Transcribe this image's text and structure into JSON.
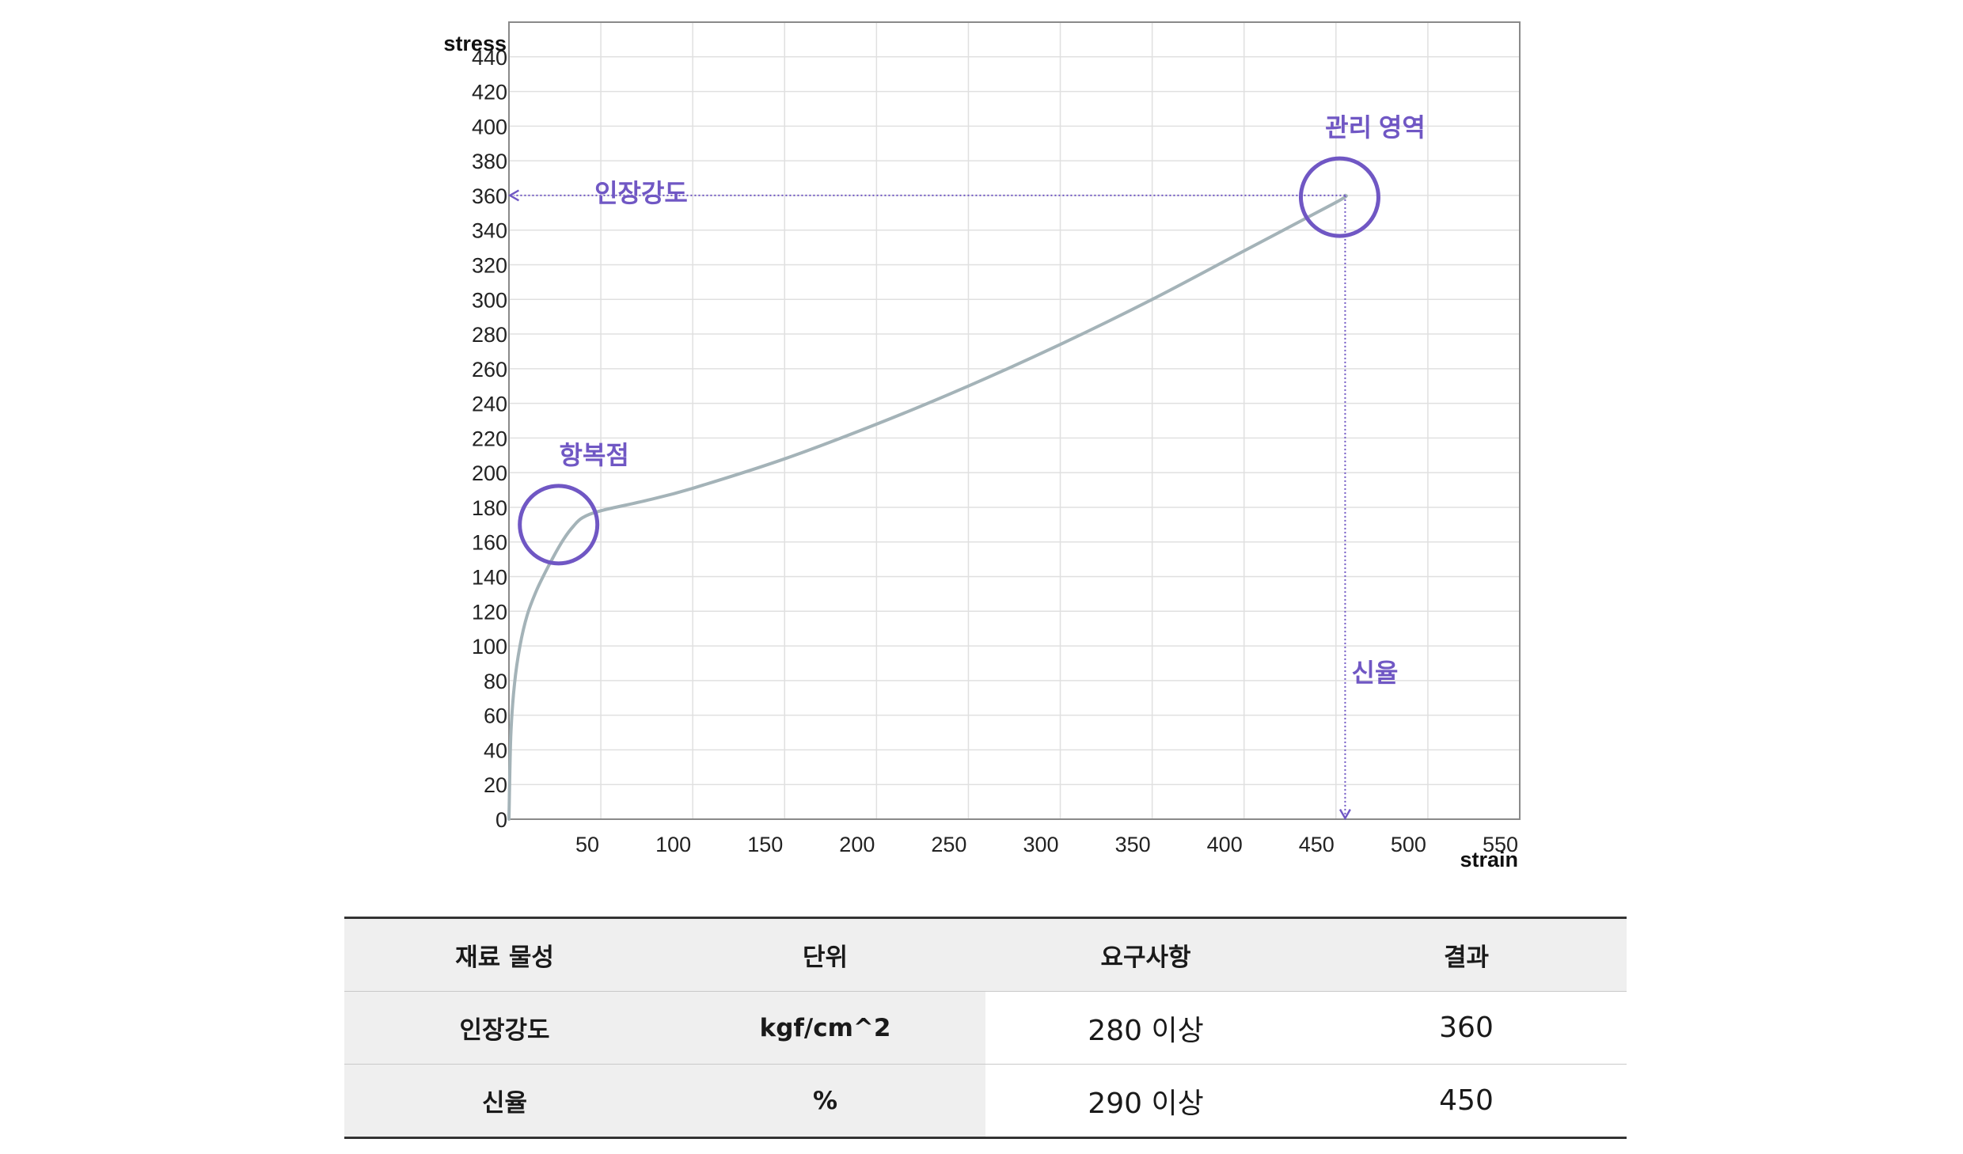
{
  "chart_data": {
    "type": "line",
    "xlabel": "strain",
    "ylabel": "stress",
    "xlim": [
      0,
      550
    ],
    "ylim": [
      0,
      460
    ],
    "x_ticks": [
      50,
      100,
      150,
      200,
      250,
      300,
      350,
      400,
      450,
      500,
      550
    ],
    "y_ticks": [
      0,
      20,
      40,
      60,
      80,
      100,
      120,
      140,
      160,
      180,
      200,
      220,
      240,
      260,
      280,
      300,
      320,
      340,
      360,
      380,
      400,
      420,
      440
    ],
    "grid": true,
    "series": [
      {
        "x": [
          0,
          1,
          3,
          6,
          10,
          15,
          20,
          25,
          30,
          35,
          40,
          50,
          75,
          100,
          150,
          200,
          250,
          300,
          350,
          400,
          450,
          455
        ],
        "y": [
          0,
          48,
          78,
          100,
          118,
          132,
          143,
          153,
          162,
          169,
          174,
          178,
          184,
          191,
          208,
          228,
          250,
          274,
          300,
          328,
          356,
          360
        ]
      }
    ],
    "annotations": [
      {
        "text": "인장강도",
        "type": "horizontal-dotted-arrow",
        "value": 360
      },
      {
        "text": "신율",
        "type": "vertical-dotted-arrow",
        "value": 450
      },
      {
        "text": "항복점",
        "type": "circle",
        "x": 27,
        "y": 170
      },
      {
        "text": "관리 영역",
        "type": "circle",
        "x": 452,
        "y": 359
      }
    ],
    "colors": {
      "curve": "#a4b3b8",
      "annotation": "#7057c4",
      "grid": "#e0e0e0",
      "axis": "#8a8a8a"
    }
  },
  "table": {
    "headers": [
      "재료 물성",
      "단위",
      "요구사항",
      "결과"
    ],
    "rows": [
      [
        "인장강도",
        "kgf/cm^2",
        "280 이상",
        "360"
      ],
      [
        "신율",
        "%",
        "290 이상",
        "450"
      ]
    ]
  }
}
